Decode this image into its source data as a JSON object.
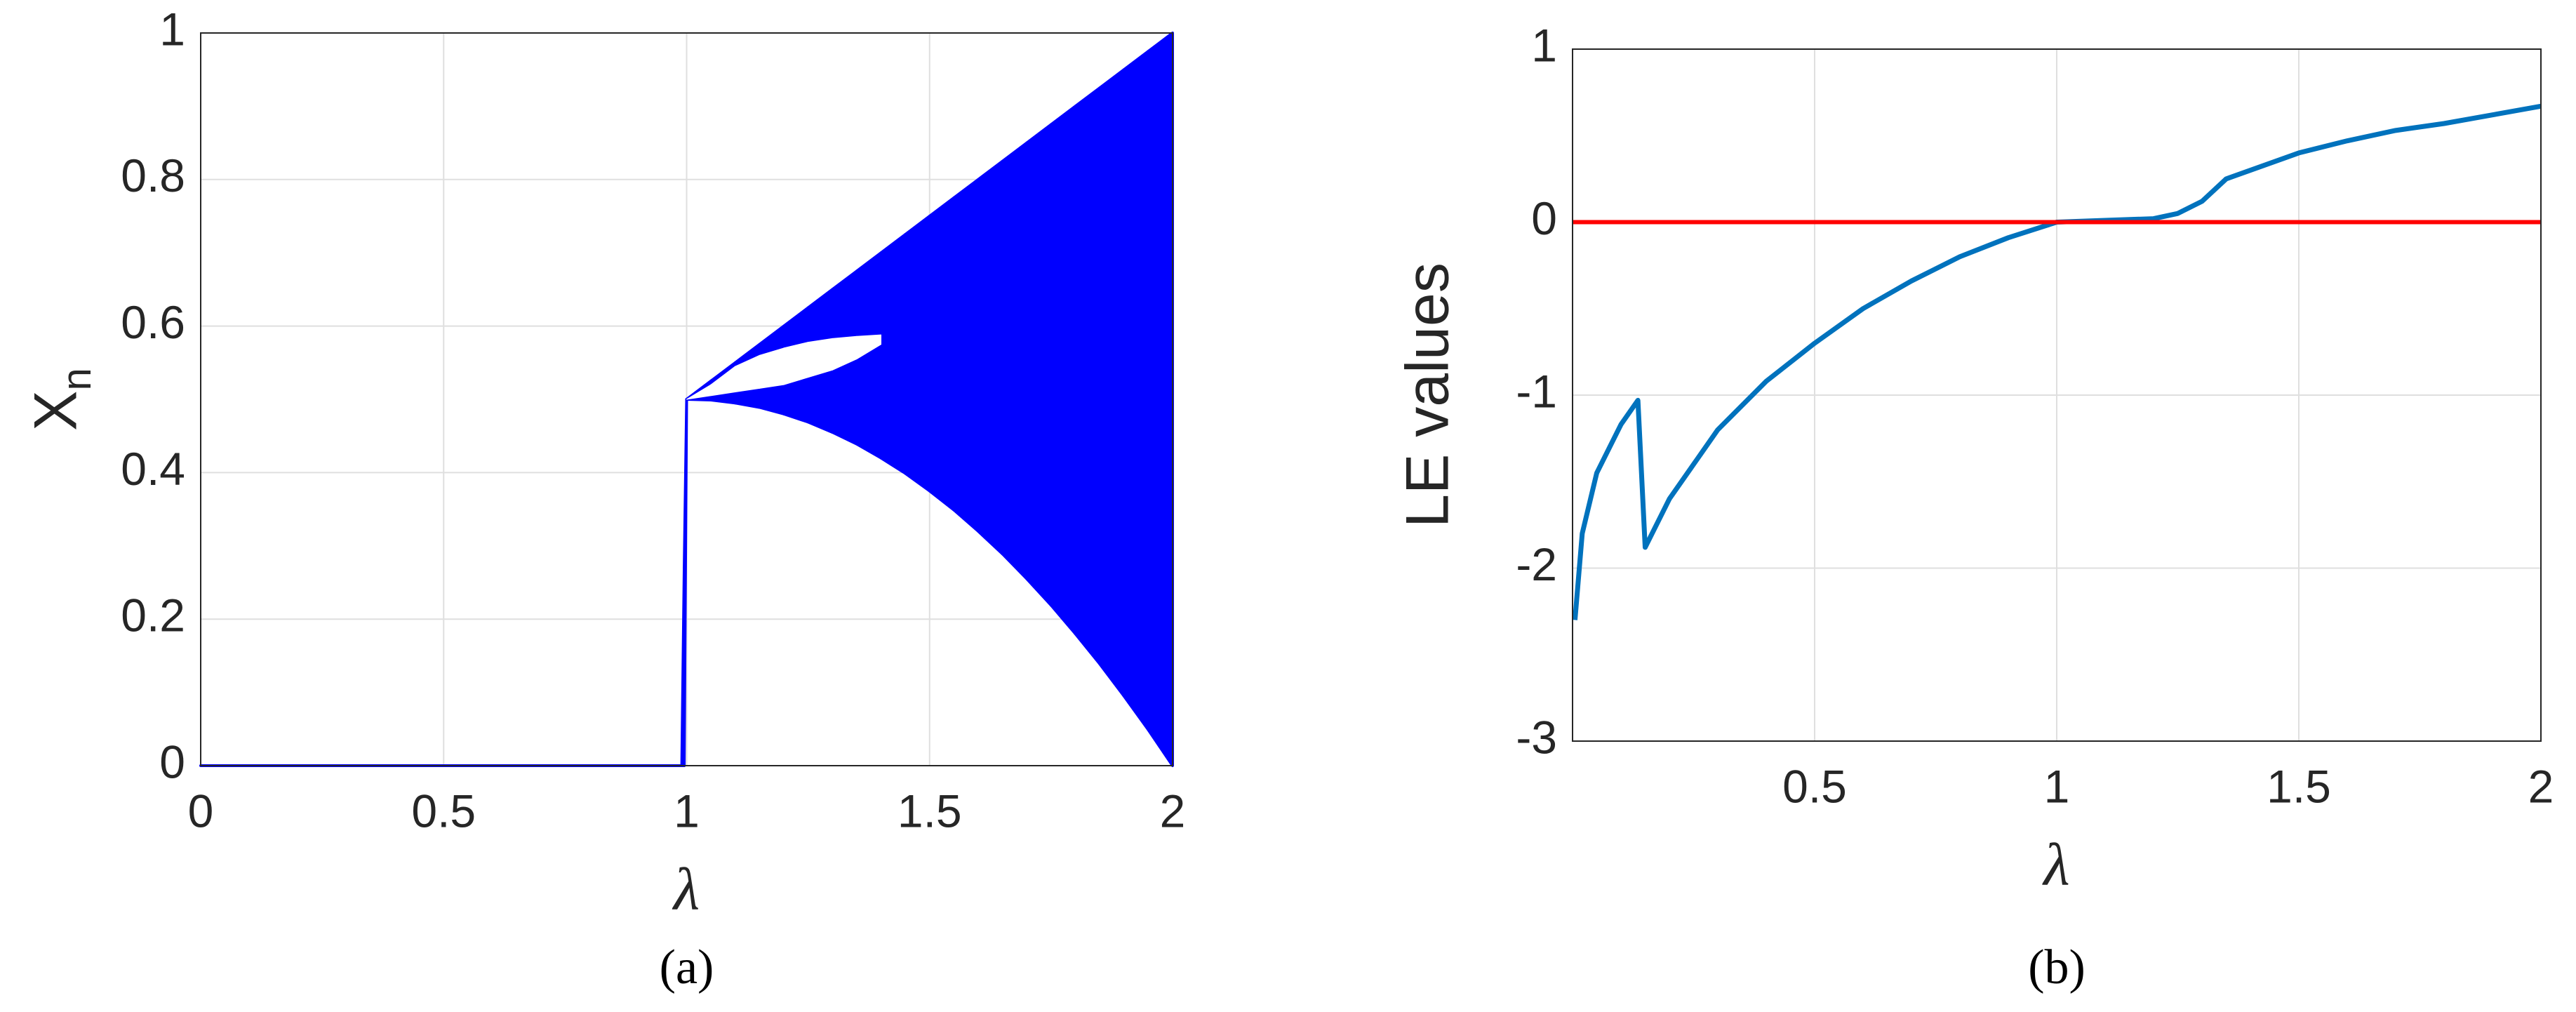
{
  "chart_data": [
    {
      "type": "band",
      "xlabel": "λ",
      "ylabel": "X",
      "ylabel_sub": "n",
      "caption": "(a)",
      "x": [
        0,
        0.5,
        0.99,
        0.995,
        1,
        1.05,
        1.1,
        1.15,
        1.2,
        1.25,
        1.3,
        1.35,
        1.4,
        1.45,
        1.5,
        1.55,
        1.6,
        1.65,
        1.7,
        1.75,
        1.8,
        1.85,
        1.9,
        1.95,
        2
      ],
      "series": [
        {
          "color": "#0000ff",
          "values": [
            0,
            0,
            0,
            0,
            0.5,
            0.499,
            0.495,
            0.489,
            0.48,
            0.469,
            0.455,
            0.439,
            0.42,
            0.399,
            0.375,
            0.349,
            0.32,
            0.289,
            0.255,
            0.219,
            0.18,
            0.139,
            0.095,
            0.049,
            0
          ]
        },
        {
          "color": "#0000ff",
          "values": [
            0,
            0,
            0,
            0.27,
            0.5,
            0.525,
            0.55,
            0.575,
            0.6,
            0.625,
            0.65,
            0.675,
            0.7,
            0.725,
            0.75,
            0.775,
            0.8,
            0.825,
            0.85,
            0.875,
            0.9,
            0.925,
            0.95,
            0.975,
            1
          ]
        },
        {
          "color": "#ffffff",
          "values": [
            null,
            null,
            null,
            null,
            0.5,
            0.505,
            0.51,
            0.515,
            0.52,
            0.53,
            0.54,
            0.555,
            0.575,
            null,
            null,
            null,
            null,
            null,
            null,
            null,
            null,
            null,
            null,
            null,
            null
          ]
        },
        {
          "color": "#ffffff",
          "values": [
            null,
            null,
            null,
            null,
            0.5,
            0.52,
            0.545,
            0.56,
            0.57,
            0.578,
            0.583,
            0.586,
            0.588,
            null,
            null,
            null,
            null,
            null,
            null,
            null,
            null,
            null,
            null,
            null,
            null
          ]
        }
      ],
      "xlim": [
        0,
        2
      ],
      "ylim": [
        0,
        1
      ],
      "xticks": [
        0,
        0.5,
        1,
        1.5,
        2
      ],
      "yticks": [
        0,
        0.2,
        0.4,
        0.6,
        0.8,
        1
      ],
      "grid": true
    },
    {
      "type": "line",
      "xlabel": "λ",
      "ylabel": "LE values",
      "caption": "(b)",
      "x": [
        0.005,
        0.02,
        0.05,
        0.1,
        0.135,
        0.15,
        0.2,
        0.3,
        0.4,
        0.5,
        0.6,
        0.7,
        0.8,
        0.9,
        1,
        1.1,
        1.2,
        1.25,
        1.3,
        1.35,
        1.4,
        1.5,
        1.6,
        1.7,
        1.8,
        1.9,
        2
      ],
      "series": [
        {
          "color": "#0072bd",
          "values": [
            -2.3,
            -1.8,
            -1.45,
            -1.17,
            -1.03,
            -1.88,
            -1.6,
            -1.2,
            -0.92,
            -0.7,
            -0.5,
            -0.34,
            -0.2,
            -0.09,
            0,
            0.01,
            0.02,
            0.05,
            0.12,
            0.25,
            0.3,
            0.4,
            0.47,
            0.53,
            0.57,
            0.62,
            0.67
          ]
        }
      ],
      "reference_line": {
        "value": 0,
        "color": "#ff0000"
      },
      "xlim": [
        0,
        2
      ],
      "ylim": [
        -3,
        1
      ],
      "xticks": [
        0.5,
        1,
        1.5,
        2
      ],
      "yticks": [
        -3,
        -2,
        -1,
        0,
        1
      ],
      "grid": true
    }
  ]
}
